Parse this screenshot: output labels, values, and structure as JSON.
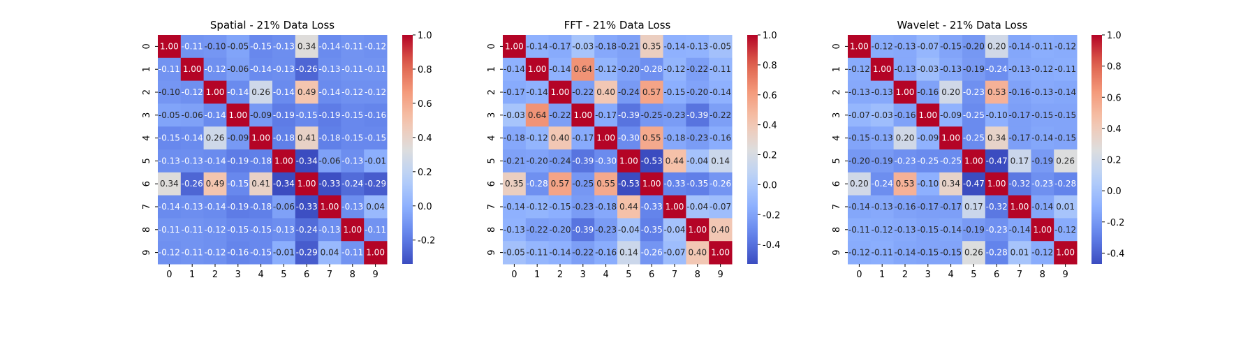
{
  "chart_data": [
    {
      "type": "heatmap",
      "title": "Spatial - 21% Data Loss",
      "x_categories": [
        "0",
        "1",
        "2",
        "3",
        "4",
        "5",
        "6",
        "7",
        "8",
        "9"
      ],
      "y_categories": [
        "0",
        "1",
        "2",
        "3",
        "4",
        "5",
        "6",
        "7",
        "8",
        "9"
      ],
      "labels": [
        [
          "1.00",
          "-0.11",
          "-0.10",
          "-0.05",
          "-0.15",
          "-0.13",
          "0.34",
          "-0.14",
          "-0.11",
          "-0.12"
        ],
        [
          "-0.11",
          "1.00",
          "-0.12",
          "-0.06",
          "-0.14",
          "-0.13",
          "-0.26",
          "-0.13",
          "-0.11",
          "-0.11"
        ],
        [
          "-0.10",
          "-0.12",
          "1.00",
          "-0.14",
          "0.26",
          "-0.14",
          "0.49",
          "-0.14",
          "-0.12",
          "-0.12"
        ],
        [
          "-0.05",
          "-0.06",
          "-0.14",
          "1.00",
          "-0.09",
          "-0.19",
          "-0.15",
          "-0.19",
          "-0.15",
          "-0.16"
        ],
        [
          "-0.15",
          "-0.14",
          "0.26",
          "-0.09",
          "1.00",
          "-0.18",
          "0.41",
          "-0.18",
          "-0.15",
          "-0.15"
        ],
        [
          "-0.13",
          "-0.13",
          "-0.14",
          "-0.19",
          "-0.18",
          "1.00",
          "-0.34",
          "-0.06",
          "-0.13",
          "-0.01"
        ],
        [
          "0.34",
          "-0.26",
          "0.49",
          "-0.15",
          "0.41",
          "-0.34",
          "1.00",
          "-0.33",
          "-0.24",
          "-0.29"
        ],
        [
          "-0.14",
          "-0.13",
          "-0.14",
          "-0.19",
          "-0.18",
          "-0.06",
          "-0.33",
          "1.00",
          "-0.13",
          "0.04"
        ],
        [
          "-0.11",
          "-0.11",
          "-0.12",
          "-0.15",
          "-0.15",
          "-0.13",
          "-0.24",
          "-0.13",
          "1.00",
          "-0.11"
        ],
        [
          "-0.12",
          "-0.11",
          "-0.12",
          "-0.16",
          "-0.15",
          "-0.01",
          "-0.29",
          "0.04",
          "-0.11",
          "1.00"
        ]
      ],
      "colorbar": {
        "vmin": -0.34,
        "vmax": 1.0,
        "ticks": [
          "-0.2",
          "0.0",
          "0.2",
          "0.4",
          "0.6",
          "0.8",
          "1.0"
        ]
      },
      "colormap": "coolwarm"
    },
    {
      "type": "heatmap",
      "title": "FFT - 21% Data Loss",
      "x_categories": [
        "0",
        "1",
        "2",
        "3",
        "4",
        "5",
        "6",
        "7",
        "8",
        "9"
      ],
      "y_categories": [
        "0",
        "1",
        "2",
        "3",
        "4",
        "5",
        "6",
        "7",
        "8",
        "9"
      ],
      "labels": [
        [
          "1.00",
          "-0.14",
          "-0.17",
          "-0.03",
          "-0.18",
          "-0.21",
          "0.35",
          "-0.14",
          "-0.13",
          "-0.05"
        ],
        [
          "-0.14",
          "1.00",
          "-0.14",
          "0.64",
          "-0.12",
          "-0.20",
          "-0.28",
          "-0.12",
          "-0.22",
          "-0.11"
        ],
        [
          "-0.17",
          "-0.14",
          "1.00",
          "-0.22",
          "0.40",
          "-0.24",
          "0.57",
          "-0.15",
          "-0.20",
          "-0.14"
        ],
        [
          "-0.03",
          "0.64",
          "-0.22",
          "1.00",
          "-0.17",
          "-0.39",
          "-0.25",
          "-0.23",
          "-0.39",
          "-0.22"
        ],
        [
          "-0.18",
          "-0.12",
          "0.40",
          "-0.17",
          "1.00",
          "-0.30",
          "0.55",
          "-0.18",
          "-0.23",
          "-0.16"
        ],
        [
          "-0.21",
          "-0.20",
          "-0.24",
          "-0.39",
          "-0.30",
          "1.00",
          "-0.53",
          "0.44",
          "-0.04",
          "0.14"
        ],
        [
          "0.35",
          "-0.28",
          "0.57",
          "-0.25",
          "0.55",
          "-0.53",
          "1.00",
          "-0.33",
          "-0.35",
          "-0.26"
        ],
        [
          "-0.14",
          "-0.12",
          "-0.15",
          "-0.23",
          "-0.18",
          "0.44",
          "-0.33",
          "1.00",
          "-0.04",
          "-0.07"
        ],
        [
          "-0.13",
          "-0.22",
          "-0.20",
          "-0.39",
          "-0.23",
          "-0.04",
          "-0.35",
          "-0.04",
          "1.00",
          "0.40"
        ],
        [
          "-0.05",
          "-0.11",
          "-0.14",
          "-0.22",
          "-0.16",
          "0.14",
          "-0.26",
          "-0.07",
          "0.40",
          "1.00"
        ]
      ],
      "colorbar": {
        "vmin": -0.53,
        "vmax": 1.0,
        "ticks": [
          "-0.4",
          "-0.2",
          "0.0",
          "0.2",
          "0.4",
          "0.6",
          "0.8",
          "1.0"
        ]
      },
      "colormap": "coolwarm"
    },
    {
      "type": "heatmap",
      "title": "Wavelet - 21% Data Loss",
      "x_categories": [
        "0",
        "1",
        "2",
        "3",
        "4",
        "5",
        "6",
        "7",
        "8",
        "9"
      ],
      "y_categories": [
        "0",
        "1",
        "2",
        "3",
        "4",
        "5",
        "6",
        "7",
        "8",
        "9"
      ],
      "labels": [
        [
          "1.00",
          "-0.12",
          "-0.13",
          "-0.07",
          "-0.15",
          "-0.20",
          "0.20",
          "-0.14",
          "-0.11",
          "-0.12"
        ],
        [
          "-0.12",
          "1.00",
          "-0.13",
          "-0.03",
          "-0.13",
          "-0.19",
          "-0.24",
          "-0.13",
          "-0.12",
          "-0.11"
        ],
        [
          "-0.13",
          "-0.13",
          "1.00",
          "-0.16",
          "0.20",
          "-0.23",
          "0.53",
          "-0.16",
          "-0.13",
          "-0.14"
        ],
        [
          "-0.07",
          "-0.03",
          "-0.16",
          "1.00",
          "-0.09",
          "-0.25",
          "-0.10",
          "-0.17",
          "-0.15",
          "-0.15"
        ],
        [
          "-0.15",
          "-0.13",
          "0.20",
          "-0.09",
          "1.00",
          "-0.25",
          "0.34",
          "-0.17",
          "-0.14",
          "-0.15"
        ],
        [
          "-0.20",
          "-0.19",
          "-0.23",
          "-0.25",
          "-0.25",
          "1.00",
          "-0.47",
          "0.17",
          "-0.19",
          "0.26"
        ],
        [
          "0.20",
          "-0.24",
          "0.53",
          "-0.10",
          "0.34",
          "-0.47",
          "1.00",
          "-0.32",
          "-0.23",
          "-0.28"
        ],
        [
          "-0.14",
          "-0.13",
          "-0.16",
          "-0.17",
          "-0.17",
          "0.17",
          "-0.32",
          "1.00",
          "-0.14",
          "0.01"
        ],
        [
          "-0.11",
          "-0.12",
          "-0.13",
          "-0.15",
          "-0.14",
          "-0.19",
          "-0.23",
          "-0.14",
          "1.00",
          "-0.12"
        ],
        [
          "-0.12",
          "-0.11",
          "-0.14",
          "-0.15",
          "-0.15",
          "0.26",
          "-0.28",
          "0.01",
          "-0.12",
          "1.00"
        ]
      ],
      "colorbar": {
        "vmin": -0.47,
        "vmax": 1.0,
        "ticks": [
          "-0.4",
          "-0.2",
          "0.0",
          "0.2",
          "0.4",
          "0.6",
          "0.8",
          "1.0"
        ]
      },
      "colormap": "coolwarm"
    }
  ]
}
